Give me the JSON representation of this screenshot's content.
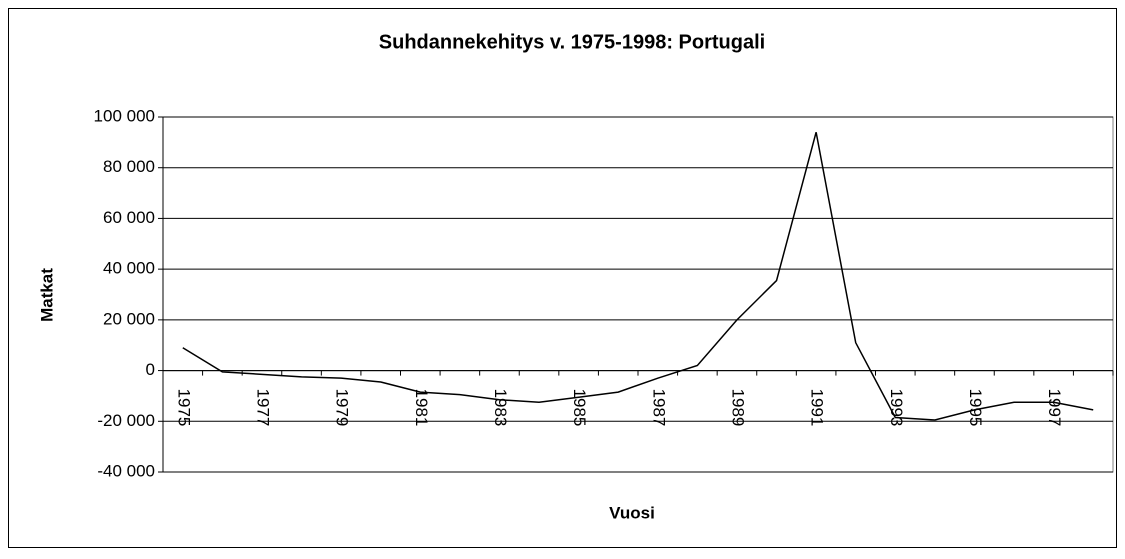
{
  "chart_data": {
    "type": "line",
    "title": "Suhdannekehitys v. 1975-1998: Portugali",
    "x_label": "Vuosi",
    "y_label": "Matkat",
    "categories": [
      "1975",
      null,
      "1977",
      null,
      "1979",
      null,
      "1981",
      null,
      "1983",
      null,
      "1985",
      null,
      "1987",
      null,
      "1989",
      null,
      "1991",
      null,
      "1993",
      null,
      "1995",
      null,
      "1997",
      null
    ],
    "series": [
      {
        "name": "Portugali",
        "color": "#000000",
        "values": [
          9000,
          -500,
          -1500,
          -2500,
          -3000,
          -4500,
          -8500,
          -9500,
          -11500,
          -12500,
          -10500,
          -8500,
          -3000,
          2000,
          20000,
          35500,
          94000,
          11000,
          -18500,
          -19500,
          -15500,
          -12500,
          -12500,
          -15500
        ]
      }
    ],
    "ylim": [
      -40000,
      100000
    ],
    "yticks": [
      {
        "value": -40000,
        "label": "-40 000"
      },
      {
        "value": -20000,
        "label": "-20 000"
      },
      0,
      {
        "value": 20000,
        "label": "20 000"
      },
      {
        "value": 40000,
        "label": "40 000"
      },
      {
        "value": 60000,
        "label": "60 000"
      },
      {
        "value": 80000,
        "label": "80 000"
      },
      {
        "value": 100000,
        "label": "100 000"
      }
    ],
    "grid": true
  }
}
